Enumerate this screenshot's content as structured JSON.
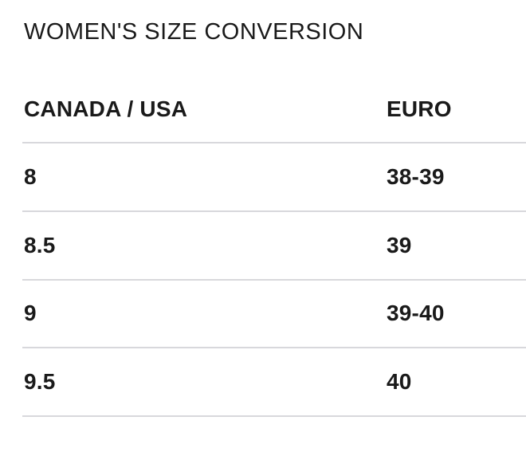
{
  "page": {
    "title": "WOMEN'S SIZE CONVERSION"
  },
  "table": {
    "columns": [
      "CANADA / USA",
      "EURO"
    ],
    "rows": [
      {
        "canada_usa": "8",
        "euro": "38-39"
      },
      {
        "canada_usa": "8.5",
        "euro": "39"
      },
      {
        "canada_usa": "9",
        "euro": "39-40"
      },
      {
        "canada_usa": "9.5",
        "euro": "40"
      }
    ]
  },
  "colors": {
    "text": "#1a1a1a",
    "divider": "#d8d8dc",
    "background": "#ffffff"
  }
}
